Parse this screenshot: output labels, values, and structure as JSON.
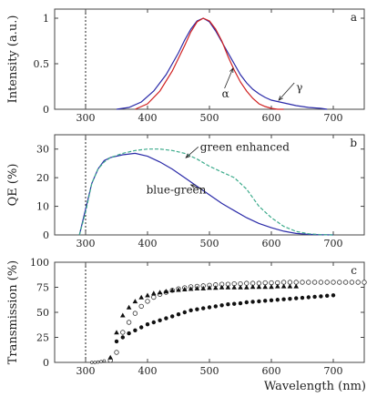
{
  "chart_data": [
    {
      "type": "line",
      "panel": "a",
      "xlabel": "",
      "ylabel": "Intensity (a.u.)",
      "xlim": [
        250,
        750
      ],
      "ylim": [
        0,
        1.1
      ],
      "xticks": [
        300,
        400,
        500,
        600,
        700
      ],
      "yticks": [
        0,
        0.5,
        1
      ],
      "ytick_labels": [
        "0",
        "0.5",
        "1"
      ],
      "vline_x": 300,
      "colors": {
        "alpha": "#d02020",
        "gamma": "#2a2aa8"
      },
      "series": [
        {
          "key": "gamma",
          "x": [
            350,
            370,
            390,
            410,
            430,
            450,
            460,
            470,
            480,
            490,
            500,
            510,
            520,
            530,
            540,
            550,
            560,
            570,
            580,
            590,
            600,
            620,
            640,
            660,
            680,
            690
          ],
          "y": [
            0.0,
            0.02,
            0.08,
            0.2,
            0.38,
            0.62,
            0.76,
            0.88,
            0.97,
            1.0,
            0.96,
            0.86,
            0.74,
            0.62,
            0.5,
            0.38,
            0.29,
            0.22,
            0.17,
            0.13,
            0.1,
            0.07,
            0.04,
            0.02,
            0.01,
            0.0
          ]
        },
        {
          "key": "alpha",
          "x": [
            380,
            400,
            420,
            440,
            460,
            470,
            480,
            490,
            500,
            510,
            520,
            530,
            540,
            550,
            560,
            570,
            580,
            590,
            600,
            610,
            620
          ],
          "y": [
            0.0,
            0.06,
            0.2,
            0.42,
            0.7,
            0.85,
            0.96,
            1.0,
            0.97,
            0.88,
            0.75,
            0.58,
            0.43,
            0.3,
            0.2,
            0.12,
            0.06,
            0.03,
            0.01,
            0.0,
            0.0
          ]
        }
      ],
      "annotations": [
        {
          "text": "α",
          "x": 520,
          "y": 0.13,
          "arrow_to": [
            538,
            0.45
          ]
        },
        {
          "text": "γ",
          "x": 640,
          "y": 0.2,
          "arrow_to": [
            612,
            0.1
          ]
        }
      ],
      "letter": "a"
    },
    {
      "type": "line",
      "panel": "b",
      "xlabel": "",
      "ylabel": "QE (%)",
      "xlim": [
        250,
        750
      ],
      "ylim": [
        0,
        35
      ],
      "xticks": [
        300,
        400,
        500,
        600,
        700
      ],
      "yticks": [
        0,
        10,
        20,
        30
      ],
      "ytick_labels": [
        "0",
        "10",
        "20",
        "30"
      ],
      "vline_x": 300,
      "colors": {
        "blue_green": "#2a2aa8",
        "green_enhanced": "#3aaa8a"
      },
      "series": [
        {
          "key": "blue_green",
          "x": [
            290,
            300,
            310,
            320,
            330,
            340,
            360,
            380,
            400,
            420,
            440,
            460,
            480,
            500,
            520,
            540,
            560,
            580,
            600,
            620,
            640,
            660,
            680,
            700
          ],
          "y": [
            0,
            9,
            18,
            23,
            26,
            27,
            28,
            28.5,
            27.5,
            25.5,
            23,
            20,
            17,
            14,
            11,
            8.5,
            6,
            4,
            2.5,
            1.3,
            0.5,
            0.2,
            0.05,
            0
          ]
        },
        {
          "key": "green_enhanced",
          "x": [
            290,
            300,
            310,
            320,
            330,
            340,
            360,
            380,
            400,
            420,
            440,
            460,
            480,
            500,
            520,
            540,
            560,
            580,
            600,
            620,
            640,
            660,
            680,
            700
          ],
          "y": [
            0,
            8,
            18,
            23,
            25.5,
            27,
            28.5,
            29.5,
            30,
            30,
            29.5,
            28.5,
            26.5,
            24,
            22,
            20,
            16,
            10,
            6,
            3,
            1.2,
            0.4,
            0.1,
            0
          ]
        }
      ],
      "annotations": [
        {
          "text": "green enhanced",
          "x": 485,
          "y": 29.5,
          "arrow_to": [
            462,
            27
          ]
        },
        {
          "text": "blue-green",
          "x": 398,
          "y": 14.5,
          "arrow_to": [
            470,
            17.5
          ]
        }
      ],
      "letter": "b"
    },
    {
      "type": "scatter",
      "panel": "c",
      "xlabel": "Wavelength (nm)",
      "ylabel": "Transmission (%)",
      "xlim": [
        250,
        750
      ],
      "ylim": [
        0,
        100
      ],
      "xticks": [
        300,
        400,
        500,
        600,
        700
      ],
      "yticks": [
        0,
        25,
        50,
        75,
        100
      ],
      "ytick_labels": [
        "0",
        "25",
        "50",
        "75",
        "100"
      ],
      "vline_x": 300,
      "series": [
        {
          "key": "filled_circles",
          "marker": "filled-circle",
          "x": [
            350,
            360,
            370,
            380,
            390,
            400,
            410,
            420,
            430,
            440,
            450,
            460,
            470,
            480,
            490,
            500,
            510,
            520,
            530,
            540,
            550,
            560,
            570,
            580,
            590,
            600,
            610,
            620,
            630,
            640,
            650,
            660,
            670,
            680,
            690,
            700
          ],
          "y": [
            21,
            25,
            29,
            32,
            35,
            38,
            40,
            42,
            44,
            46,
            48,
            50,
            52,
            53,
            54,
            55,
            56,
            57,
            58,
            58.5,
            59,
            60,
            60.5,
            61,
            61.5,
            62,
            62.5,
            63,
            63.5,
            64,
            64.5,
            65,
            65.5,
            66,
            66.5,
            67
          ]
        },
        {
          "key": "open_circles",
          "marker": "open-circle",
          "x": [
            340,
            350,
            360,
            370,
            380,
            390,
            400,
            410,
            420,
            430,
            440,
            450,
            460,
            470,
            480,
            490,
            500,
            510,
            520,
            530,
            540,
            550,
            560,
            570,
            580,
            590,
            600,
            610,
            620,
            630,
            640,
            650,
            660,
            670,
            680,
            690,
            700,
            710,
            720,
            730,
            740,
            750
          ],
          "y": [
            2,
            10,
            30,
            40,
            49,
            56,
            61,
            65,
            68,
            70,
            72,
            73.5,
            74.5,
            75.5,
            76,
            76.5,
            77,
            77.5,
            78,
            78,
            78.5,
            78.5,
            79,
            79,
            79,
            79.5,
            79.5,
            79.5,
            80,
            80,
            80,
            80,
            80,
            80,
            80,
            80,
            80,
            80,
            80,
            80,
            80,
            80
          ]
        },
        {
          "key": "triangles",
          "marker": "filled-triangle",
          "x": [
            340,
            350,
            360,
            370,
            380,
            390,
            400,
            410,
            420,
            430,
            440,
            450,
            460,
            470,
            480,
            490,
            500,
            510,
            520,
            530,
            540,
            550,
            560,
            570,
            580,
            590,
            600,
            610,
            620,
            630,
            640
          ],
          "y": [
            5,
            30,
            47,
            55,
            61,
            65,
            67,
            69,
            70,
            71,
            72,
            72.5,
            73,
            73.5,
            74,
            74,
            74.5,
            74.5,
            75,
            75,
            75,
            75,
            75,
            75.5,
            75.5,
            75.5,
            75.5,
            76,
            76,
            76,
            76
          ]
        },
        {
          "key": "dotted_low",
          "marker": "open-circle-small",
          "x": [
            310,
            315,
            320,
            325,
            330
          ],
          "y": [
            0,
            0,
            0.3,
            0.8,
            1.5
          ]
        }
      ],
      "letter": "c"
    }
  ]
}
